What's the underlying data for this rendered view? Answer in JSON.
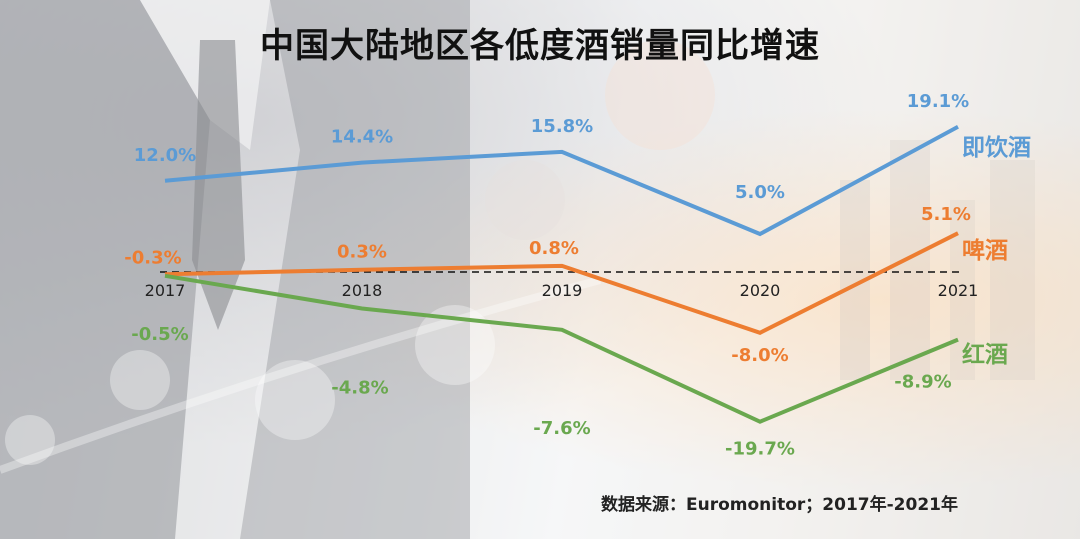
{
  "colors": {
    "ready_to_drink": "#5b9bd5",
    "beer": "#ed7d31",
    "wine": "#6aa84f"
  },
  "title": "中国大陆地区各低度酒销量同比增速",
  "source": "数据来源：Euromonitor；2017年-2021年",
  "chart_data": {
    "type": "line",
    "title": "中国大陆地区各低度酒销量同比增速",
    "x": [
      "2017",
      "2018",
      "2019",
      "2020",
      "2021"
    ],
    "series": [
      {
        "name": "即饮酒",
        "values": [
          12.0,
          14.4,
          15.8,
          5.0,
          19.1
        ],
        "labels": [
          "12.0%",
          "14.4%",
          "15.8%",
          "5.0%",
          "19.1%"
        ],
        "color": "#5b9bd5"
      },
      {
        "name": "啤酒",
        "values": [
          -0.3,
          0.3,
          0.8,
          -8.0,
          5.1
        ],
        "labels": [
          "-0.3%",
          "0.3%",
          "0.8%",
          "-8.0%",
          "5.1%"
        ],
        "color": "#ed7d31"
      },
      {
        "name": "红酒",
        "values": [
          -0.5,
          -4.8,
          -7.6,
          -19.7,
          -8.9
        ],
        "labels": [
          "-0.5%",
          "-4.8%",
          "-7.6%",
          "-19.7%",
          "-8.9%"
        ],
        "color": "#6aa84f"
      }
    ],
    "zero_line": "dashed",
    "grid": false,
    "legend": "series names at right end of lines"
  }
}
